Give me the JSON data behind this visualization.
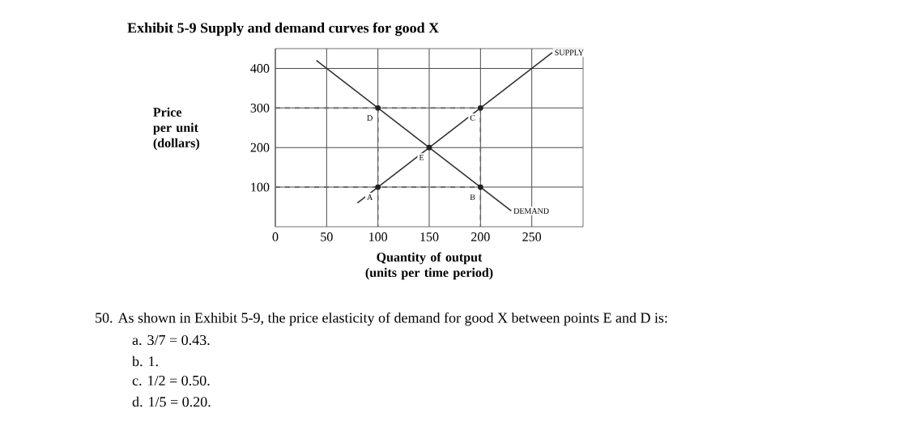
{
  "chart_data": {
    "type": "line",
    "title": "Exhibit 5-9 Supply and demand curves for good X",
    "ylabel": "Price per unit (dollars)",
    "xlabel": "Quantity of output (units per time period)",
    "xlim": [
      0,
      300
    ],
    "ylim": [
      0,
      450
    ],
    "xticks": [
      0,
      50,
      100,
      150,
      200,
      250
    ],
    "yticks": [
      100,
      200,
      300,
      400
    ],
    "grid": true,
    "marker": "none",
    "series": [
      {
        "name": "SUPPLY",
        "color": "#333333",
        "x": [
          80,
          270
        ],
        "values": [
          60,
          440
        ]
      },
      {
        "name": "DEMAND",
        "color": "#333333",
        "x": [
          40,
          230
        ],
        "values": [
          420,
          40
        ]
      },
      {
        "type": "line",
        "line_style": "dashed",
        "color": "#666666",
        "x": [
          0,
          200
        ],
        "values": [
          300,
          300
        ]
      },
      {
        "type": "line",
        "line_style": "dashed",
        "color": "#666666",
        "x": [
          0,
          200
        ],
        "values": [
          100,
          100
        ]
      },
      {
        "type": "line",
        "line_style": "dashed",
        "color": "#666666",
        "x": [
          100,
          100
        ],
        "values": [
          300,
          0
        ]
      },
      {
        "type": "line",
        "line_style": "dashed",
        "color": "#666666",
        "x": [
          200,
          200
        ],
        "values": [
          300,
          0
        ]
      },
      {
        "type": "scatter",
        "marker": "circle",
        "color": "#222222",
        "x": [
          100,
          200,
          200,
          100,
          150
        ],
        "values": [
          300,
          300,
          100,
          100,
          200
        ]
      }
    ],
    "annotations": [
      "50. As shown in Exhibit 5-9, the price elasticity of demand for good X between points E and D is:",
      "a. 3/7 = 0.43.",
      "b. 1.",
      "c. 1/2 = 0.50.",
      "d. 1/5 = 0.20.",
      {
        "text": "D",
        "x": 100,
        "y": 300
      },
      {
        "text": "C",
        "x": 200,
        "y": 300
      },
      {
        "text": "B",
        "x": 200,
        "y": 100
      },
      {
        "text": "A",
        "x": 100,
        "y": 100
      },
      {
        "text": "E",
        "x": 150,
        "y": 200
      }
    ]
  }
}
